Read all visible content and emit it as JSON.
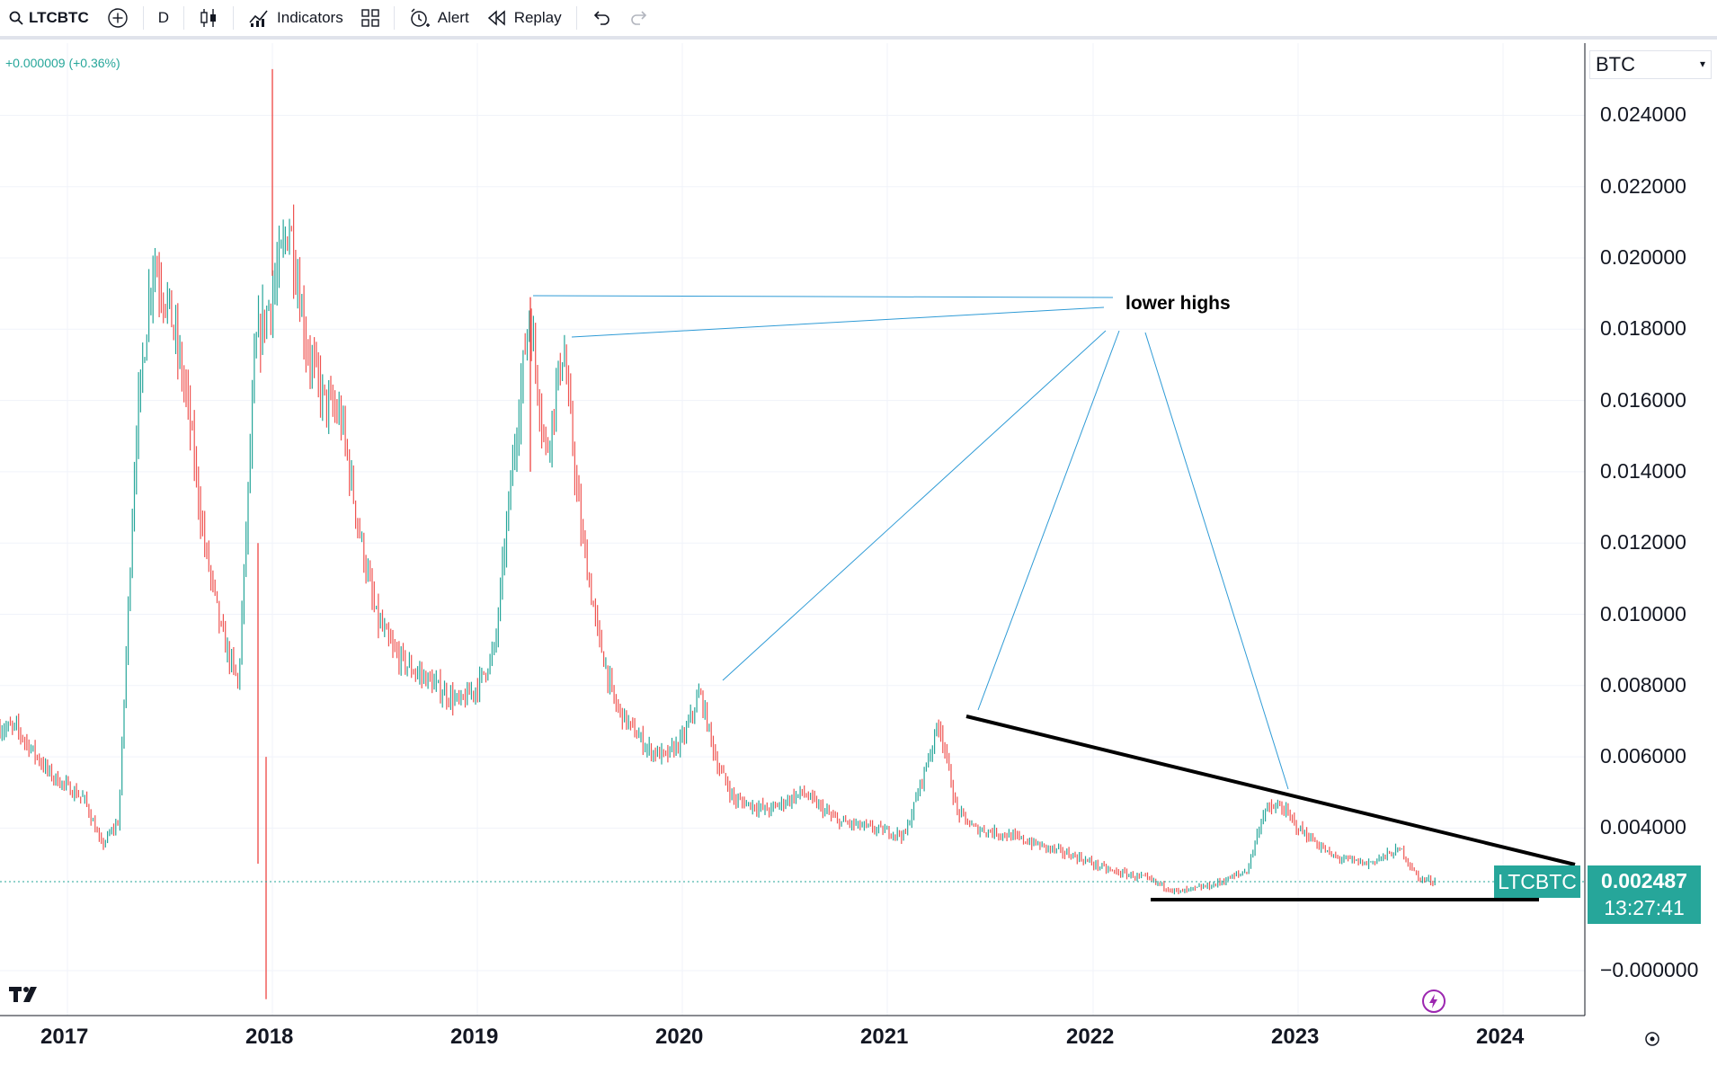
{
  "toolbar": {
    "symbol": "LTCBTC",
    "interval": "D",
    "indicators_label": "Indicators",
    "alert_label": "Alert",
    "replay_label": "Replay"
  },
  "header": {
    "change_readout": "+0.000009 (+0.36%)",
    "currency": "BTC"
  },
  "price_axis": {
    "ticks": [
      "0.024000",
      "0.022000",
      "0.020000",
      "0.018000",
      "0.016000",
      "0.014000",
      "0.012000",
      "0.010000",
      "0.008000",
      "0.006000",
      "0.004000",
      "−0.000000"
    ]
  },
  "time_axis": {
    "ticks": [
      "2017",
      "2018",
      "2019",
      "2020",
      "2021",
      "2022",
      "2023",
      "2024"
    ]
  },
  "last_price": {
    "symbol": "LTCBTC",
    "value": "0.002487",
    "countdown": "13:27:41"
  },
  "annotation": {
    "text": "lower highs"
  },
  "colors": {
    "up": "#26a69a",
    "down": "#ef5350",
    "line": "#2196f3",
    "trend": "#000000"
  },
  "chart_data": {
    "type": "candlestick",
    "x": [
      "2016-10",
      "2016-12",
      "2017-02",
      "2017-03",
      "2017-04",
      "2017-05",
      "2017-06",
      "2017-07",
      "2017-08",
      "2017-09",
      "2017-10",
      "2017-11",
      "2017-12",
      "2018-01",
      "2018-02",
      "2018-03",
      "2018-04",
      "2018-05",
      "2018-06",
      "2018-07",
      "2018-08",
      "2018-09",
      "2018-10",
      "2018-11",
      "2018-12",
      "2019-01",
      "2019-02",
      "2019-03",
      "2019-04",
      "2019-05",
      "2019-06",
      "2019-07",
      "2019-08",
      "2019-09",
      "2019-10",
      "2019-11",
      "2019-12",
      "2020-01",
      "2020-02",
      "2020-03",
      "2020-04",
      "2020-06",
      "2020-08",
      "2020-10",
      "2020-12",
      "2021-02",
      "2021-04",
      "2021-05",
      "2021-06",
      "2021-08",
      "2021-10",
      "2021-12",
      "2022-02",
      "2022-04",
      "2022-06",
      "2022-08",
      "2022-10",
      "2022-11",
      "2022-12",
      "2023-01",
      "2023-03",
      "2023-05",
      "2023-07",
      "2023-08",
      "2023-09"
    ],
    "y": [
      0.0068,
      0.0055,
      0.0048,
      0.0035,
      0.0042,
      0.015,
      0.02,
      0.0185,
      0.016,
      0.012,
      0.0095,
      0.008,
      0.0175,
      0.019,
      0.021,
      0.0175,
      0.016,
      0.0155,
      0.0125,
      0.01,
      0.009,
      0.0085,
      0.0082,
      0.0078,
      0.0075,
      0.008,
      0.009,
      0.014,
      0.0185,
      0.0145,
      0.0175,
      0.0125,
      0.0095,
      0.0075,
      0.0068,
      0.0062,
      0.006,
      0.0065,
      0.0078,
      0.0058,
      0.0048,
      0.0045,
      0.005,
      0.0042,
      0.004,
      0.0038,
      0.007,
      0.0045,
      0.004,
      0.0038,
      0.0035,
      0.0032,
      0.0028,
      0.0026,
      0.0022,
      0.0024,
      0.0028,
      0.0045,
      0.0046,
      0.004,
      0.0032,
      0.003,
      0.0034,
      0.0026,
      0.0025
    ],
    "ylim": [
      -0.001,
      0.025
    ],
    "currency": "BTC",
    "grid": true
  }
}
